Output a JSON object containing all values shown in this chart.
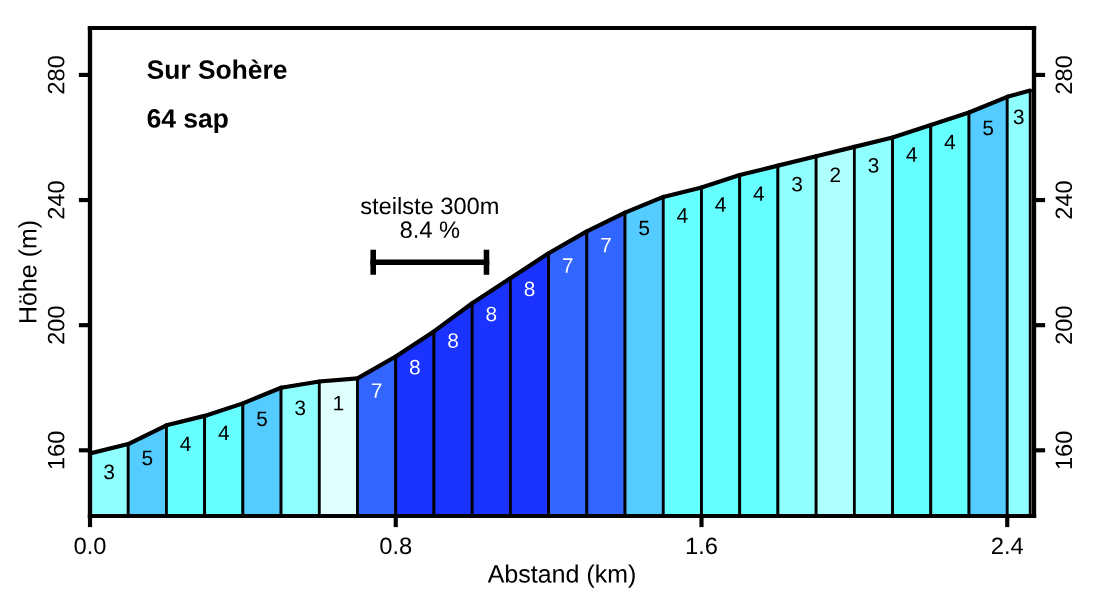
{
  "chart_data": {
    "type": "area",
    "title": "Sur Sohère",
    "subtitle": "64 sap",
    "xlabel": "Abstand (km)",
    "ylabel": "Höhe (m)",
    "series": [
      {
        "color": "#90ffff",
        "x": [
          0,
          0.1
        ],
        "values": [
          159,
          162
        ]
      },
      {
        "color": "#55ccff",
        "x": [
          0.1,
          0.2
        ],
        "values": [
          162,
          168
        ]
      },
      {
        "color": "#66ffff",
        "x": [
          0.2,
          0.3
        ],
        "values": [
          168,
          171
        ]
      },
      {
        "color": "#66ffff",
        "x": [
          0.3,
          0.4
        ],
        "values": [
          171,
          175
        ]
      },
      {
        "color": "#55ccff",
        "x": [
          0.4,
          0.5
        ],
        "values": [
          175,
          180
        ]
      },
      {
        "color": "#90ffff",
        "x": [
          0.5,
          0.6
        ],
        "values": [
          180,
          182
        ]
      },
      {
        "color": "#e0ffff",
        "x": [
          0.6,
          0.7
        ],
        "values": [
          182,
          183
        ]
      },
      {
        "color": "#3366ff",
        "x": [
          0.7,
          0.8
        ],
        "values": [
          183,
          190
        ]
      },
      {
        "color": "#1a33ff",
        "x": [
          0.8,
          0.9
        ],
        "values": [
          190,
          198
        ]
      },
      {
        "color": "#1a33ff",
        "x": [
          0.9,
          1.0
        ],
        "values": [
          198,
          207
        ]
      },
      {
        "color": "#1a33ff",
        "x": [
          1.0,
          1.1
        ],
        "values": [
          207,
          215
        ]
      },
      {
        "color": "#1a33ff",
        "x": [
          1.1,
          1.2
        ],
        "values": [
          215,
          223
        ]
      },
      {
        "color": "#3366ff",
        "x": [
          1.2,
          1.3
        ],
        "values": [
          223,
          230
        ]
      },
      {
        "color": "#3366ff",
        "x": [
          1.3,
          1.4
        ],
        "values": [
          230,
          236
        ]
      },
      {
        "color": "#55ccff",
        "x": [
          1.4,
          1.5
        ],
        "values": [
          236,
          241
        ]
      },
      {
        "color": "#66ffff",
        "x": [
          1.5,
          1.6
        ],
        "values": [
          241,
          244
        ]
      },
      {
        "color": "#66ffff",
        "x": [
          1.6,
          1.7
        ],
        "values": [
          244,
          248
        ]
      },
      {
        "color": "#66ffff",
        "x": [
          1.7,
          1.8
        ],
        "values": [
          248,
          251
        ]
      },
      {
        "color": "#90ffff",
        "x": [
          1.8,
          1.9
        ],
        "values": [
          251,
          254
        ]
      },
      {
        "color": "#b0ffff",
        "x": [
          1.9,
          2.0
        ],
        "values": [
          254,
          257
        ]
      },
      {
        "color": "#90ffff",
        "x": [
          2.0,
          2.1
        ],
        "values": [
          257,
          260
        ]
      },
      {
        "color": "#66ffff",
        "x": [
          2.1,
          2.2
        ],
        "values": [
          260,
          264
        ]
      },
      {
        "color": "#66ffff",
        "x": [
          2.2,
          2.3
        ],
        "values": [
          264,
          268
        ]
      },
      {
        "color": "#55ccff",
        "x": [
          2.3,
          2.4
        ],
        "values": [
          268,
          273
        ]
      },
      {
        "color": "#90ffff",
        "x": [
          2.4,
          2.46
        ],
        "values": [
          273,
          275
        ]
      }
    ],
    "annotations": [
      "3",
      "5",
      "4",
      "4",
      "5",
      "3",
      "1",
      "7",
      "8",
      "8",
      "8",
      "8",
      "7",
      "7",
      "5",
      "4",
      "4",
      "4",
      "3",
      "2",
      "3",
      "4",
      "4",
      "5",
      "3",
      "steilste 300m\n8.4 %"
    ],
    "xlim": [
      0,
      2.47
    ],
    "ylim": [
      139,
      295
    ],
    "xticks": [
      {
        "value": 0,
        "label": "0.0"
      },
      0.8,
      1.6,
      2.4
    ],
    "yticks": [
      160,
      200,
      240,
      280
    ],
    "y2lim": [
      139,
      295
    ],
    "y2ticks": [
      160,
      200,
      240,
      280
    ],
    "grid": false,
    "legend": false
  }
}
